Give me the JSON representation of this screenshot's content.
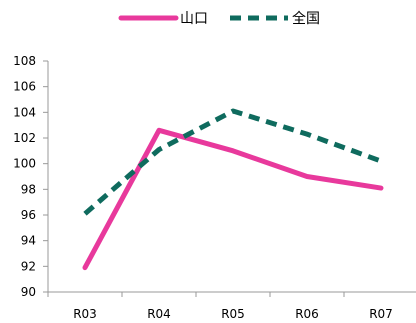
{
  "chart_data": {
    "type": "line",
    "categories": [
      "R03",
      "R04",
      "R05",
      "R06",
      "R07"
    ],
    "series": [
      {
        "name": "山口",
        "values": [
          91.9,
          102.6,
          101.0,
          99.0,
          98.1
        ],
        "color": "#e8399c",
        "style": "solid"
      },
      {
        "name": "全国",
        "values": [
          96.1,
          101.1,
          104.1,
          102.3,
          100.2
        ],
        "color": "#0f6b5e",
        "style": "dashed"
      }
    ],
    "title": "",
    "xlabel": "",
    "ylabel": "",
    "ylim": [
      90,
      108
    ],
    "yticks": [
      90,
      92,
      94,
      96,
      98,
      100,
      102,
      104,
      106,
      108
    ],
    "grid": false,
    "legend": "top-center"
  }
}
